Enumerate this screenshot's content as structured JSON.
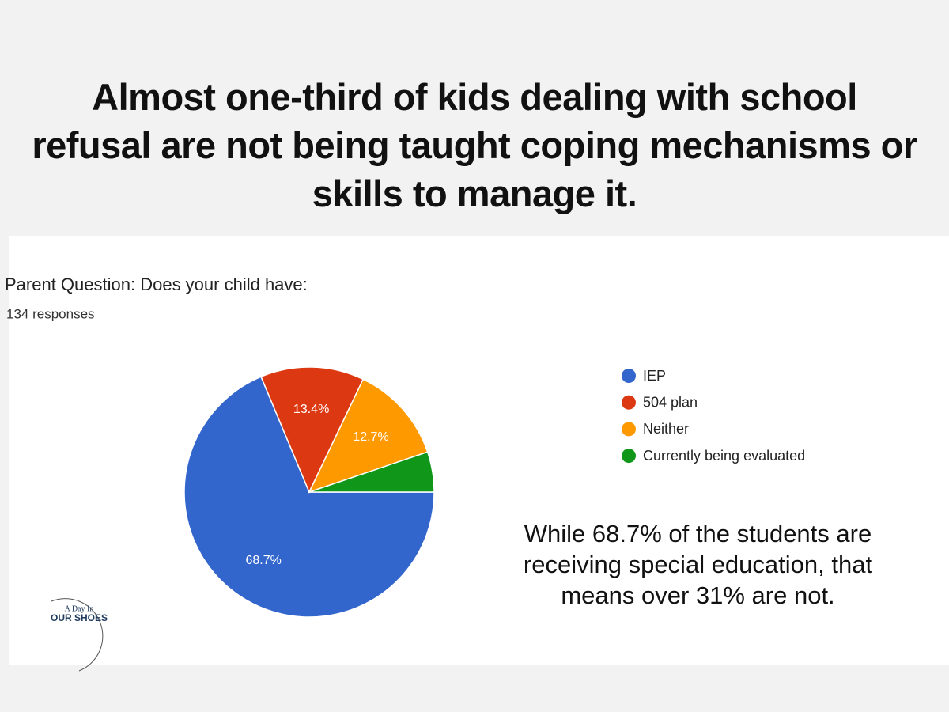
{
  "headline": "Almost one-third of kids dealing with school refusal are not being taught coping mechanisms or skills to manage it.",
  "chart_data": {
    "type": "pie",
    "title": "Parent Question:  Does your child have:",
    "subtitle": "134 responses",
    "categories": [
      "IEP",
      "504 plan",
      "Neither",
      "Currently being evaluated"
    ],
    "values": [
      68.7,
      13.4,
      12.7,
      5.2
    ],
    "value_labels": [
      "68.7%",
      "13.4%",
      "12.7%",
      null
    ],
    "colors": [
      "#3366cc",
      "#dc3912",
      "#ff9900",
      "#109618"
    ],
    "legend": "right"
  },
  "annotation": "While 68.7% of the students are receiving special education, that means over 31% are not.",
  "logo": {
    "line1": "A Day In",
    "line2": "OUR SHOES"
  }
}
